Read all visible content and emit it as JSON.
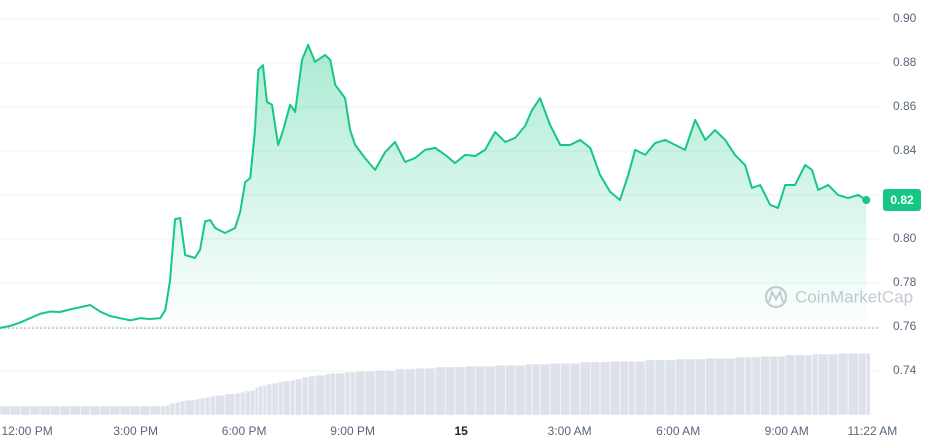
{
  "chart_data": {
    "type": "area",
    "x": [
      11.25,
      11.53,
      11.81,
      12.08,
      12.36,
      12.64,
      12.91,
      13.19,
      13.47,
      13.74,
      14.02,
      14.29,
      14.57,
      14.85,
      15.12,
      15.4,
      15.68,
      15.82,
      15.95,
      16.09,
      16.23,
      16.37,
      16.64,
      16.78,
      16.92,
      17.06,
      17.2,
      17.47,
      17.75,
      17.89,
      18.03,
      18.17,
      18.3,
      18.39,
      18.52,
      18.63,
      18.77,
      18.94,
      19.08,
      19.27,
      19.41,
      19.6,
      19.77,
      19.96,
      20.24,
      20.38,
      20.52,
      20.79,
      20.93,
      21.07,
      21.34,
      21.62,
      21.9,
      22.17,
      22.45,
      22.73,
      23.0,
      23.28,
      23.56,
      23.83,
      24.11,
      24.39,
      24.66,
      24.94,
      25.22,
      25.49,
      25.77,
      25.96,
      26.18,
      26.46,
      26.74,
      27.01,
      27.29,
      27.57,
      27.84,
      28.12,
      28.39,
      28.62,
      28.81,
      29.09,
      29.36,
      29.64,
      29.92,
      30.19,
      30.47,
      30.75,
      31.02,
      31.3,
      31.57,
      31.85,
      32.04,
      32.27,
      32.54,
      32.76,
      32.96,
      33.23,
      33.51,
      33.7,
      33.87,
      34.15,
      34.42,
      34.7,
      34.98,
      35.2
    ],
    "values": [
      0.7595,
      0.7605,
      0.762,
      0.764,
      0.766,
      0.767,
      0.7668,
      0.768,
      0.769,
      0.77,
      0.767,
      0.765,
      0.764,
      0.763,
      0.764,
      0.7636,
      0.764,
      0.7677,
      0.781,
      0.809,
      0.8095,
      0.7927,
      0.7914,
      0.795,
      0.808,
      0.8086,
      0.805,
      0.8027,
      0.805,
      0.8123,
      0.8259,
      0.8277,
      0.8495,
      0.8768,
      0.879,
      0.8623,
      0.861,
      0.8427,
      0.8495,
      0.861,
      0.8577,
      0.8814,
      0.8882,
      0.8805,
      0.8836,
      0.8814,
      0.87,
      0.864,
      0.8495,
      0.8427,
      0.8368,
      0.8314,
      0.8395,
      0.8441,
      0.835,
      0.8368,
      0.8405,
      0.8414,
      0.8382,
      0.8345,
      0.8382,
      0.8377,
      0.8405,
      0.8486,
      0.8441,
      0.8459,
      0.8514,
      0.8586,
      0.864,
      0.8518,
      0.8427,
      0.8427,
      0.845,
      0.8414,
      0.8291,
      0.8214,
      0.8177,
      0.8291,
      0.8405,
      0.8382,
      0.8436,
      0.845,
      0.8427,
      0.8405,
      0.8541,
      0.845,
      0.8495,
      0.845,
      0.8382,
      0.8336,
      0.8232,
      0.8245,
      0.8155,
      0.8141,
      0.8245,
      0.8245,
      0.8336,
      0.8314,
      0.8223,
      0.8245,
      0.82,
      0.8186,
      0.82,
      0.8177
    ],
    "color": "#16c784",
    "volume_values": [
      2.2,
      2.2,
      2.2,
      2.2,
      2.2,
      2.2,
      2.2,
      2.2,
      2.2,
      2.2,
      2.2,
      2.2,
      2.2,
      2.2,
      2.2,
      2.2,
      2.2,
      2.4,
      2.9,
      3.1,
      3.4,
      3.6,
      3.9,
      4.1,
      4.3,
      4.6,
      4.8,
      5.1,
      5.3,
      5.5,
      5.8,
      6.0,
      6.7,
      7.0,
      7.2,
      7.5,
      7.7,
      8.0,
      8.2,
      8.4,
      8.7,
      9.2,
      9.4,
      9.6,
      9.9,
      10.1,
      10.1,
      10.4,
      10.4,
      10.6,
      10.6,
      10.8,
      10.8,
      11.1,
      11.1,
      11.3,
      11.3,
      11.6,
      11.6,
      11.6,
      11.8,
      11.8,
      11.8,
      12.0,
      12.0,
      12.0,
      12.3,
      12.3,
      12.3,
      12.5,
      12.5,
      12.5,
      12.8,
      12.8,
      12.8,
      13.0,
      13.0,
      13.0,
      13.0,
      13.3,
      13.3,
      13.3,
      13.5,
      13.5,
      13.5,
      13.7,
      13.7,
      13.7,
      14.0,
      14.0,
      14.0,
      14.2,
      14.2,
      14.2,
      14.5,
      14.5,
      14.5,
      14.7,
      14.7,
      14.7,
      14.9,
      14.9,
      14.9,
      14.9
    ],
    "volume_color": "#dde2ea",
    "y2lim": [
      0,
      100
    ],
    "xlim": [
      11.25,
      35.58
    ],
    "xticks": [
      {
        "value": 12,
        "label": "12:00 PM"
      },
      {
        "value": 15,
        "label": "3:00 PM"
      },
      {
        "value": 18,
        "label": "6:00 PM"
      },
      {
        "value": 21,
        "label": "9:00 PM"
      },
      {
        "value": 24,
        "label": "15"
      },
      {
        "value": 27,
        "label": "3:00 AM"
      },
      {
        "value": 30,
        "label": "6:00 AM"
      },
      {
        "value": 33,
        "label": "9:00 AM"
      },
      {
        "value": 35.37,
        "label": "11:22 AM"
      }
    ],
    "ylim": [
      0.72,
      0.9086
    ],
    "yticks": [
      {
        "value": 0.9,
        "label": "0.90"
      },
      0.88,
      0.86,
      0.84,
      0.82,
      {
        "value": 0.8,
        "label": "0.80"
      },
      0.78,
      0.76,
      0.74
    ],
    "grid": true,
    "baseline": 0.7595,
    "annotations": [
      {
        "text": "0.82",
        "y": 0.8177
      }
    ],
    "watermark": "CoinMarketCap"
  }
}
